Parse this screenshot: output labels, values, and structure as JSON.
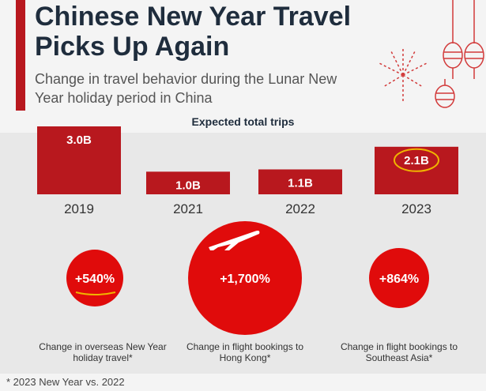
{
  "title": "Chinese New Year Travel Picks Up Again",
  "subtitle": "Change in travel behavior during the Lunar New Year holiday period in China",
  "colors": {
    "accent": "#b8181e",
    "title": "#1f2d3d",
    "panel": "#e8e8e8",
    "annotation": "#f0b400"
  },
  "chart_data": [
    {
      "type": "bar",
      "title": "Expected total trips",
      "categories": [
        "2019",
        "2021",
        "2022",
        "2023"
      ],
      "values": [
        3.0,
        1.0,
        1.1,
        2.1
      ],
      "value_labels": [
        "3.0B",
        "1.0B",
        "1.1B",
        "2.1B"
      ],
      "unit": "B",
      "highlighted_category": "2023"
    },
    {
      "type": "bubble",
      "items": [
        {
          "value_label": "+540%",
          "value": 540,
          "caption": "Change in overseas New Year holiday travel*"
        },
        {
          "value_label": "+1,700%",
          "value": 1700,
          "caption": "Change in flight bookings to Hong Kong*"
        },
        {
          "value_label": "+864%",
          "value": 864,
          "caption": "Change in flight bookings to Southeast Asia*"
        }
      ]
    }
  ],
  "footnote": "* 2023 New Year vs. 2022",
  "icons": {
    "plane": "airplane-icon",
    "lanterns": "lantern-icon",
    "fireworks": "firework-icon"
  }
}
